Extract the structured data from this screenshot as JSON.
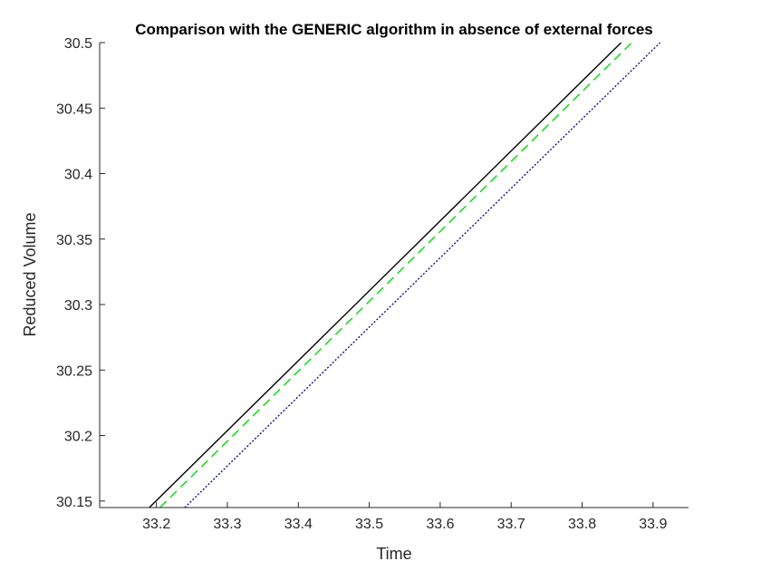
{
  "chart_data": {
    "type": "line",
    "title": "Comparison with the GENERIC algorithm in absence of external forces",
    "xlabel": "Time",
    "ylabel": "Reduced Volume",
    "xlim": [
      33.12,
      33.95
    ],
    "ylim": [
      30.145,
      30.5
    ],
    "grid": false,
    "xticks": [
      33.2,
      33.3,
      33.4,
      33.5,
      33.6,
      33.7,
      33.8,
      33.9
    ],
    "xtick_labels": [
      "33.2",
      "33.3",
      "33.4",
      "33.5",
      "33.6",
      "33.7",
      "33.8",
      "33.9"
    ],
    "yticks": [
      30.15,
      30.2,
      30.25,
      30.3,
      30.35,
      30.4,
      30.45,
      30.5
    ],
    "ytick_labels": [
      "30.15",
      "30.2",
      "30.25",
      "30.3",
      "30.35",
      "30.4",
      "30.45",
      "30.5"
    ],
    "series": [
      {
        "x": [
          33.19,
          33.855
        ],
        "y": [
          30.145,
          30.5
        ],
        "color": "#000000",
        "style": "solid"
      },
      {
        "x": [
          33.205,
          33.87
        ],
        "y": [
          30.145,
          30.5
        ],
        "color": "#00dd00",
        "style": "dashed"
      },
      {
        "x": [
          33.24,
          33.91
        ],
        "y": [
          30.145,
          30.5
        ],
        "color": "#00008b",
        "style": "dotted"
      }
    ]
  }
}
